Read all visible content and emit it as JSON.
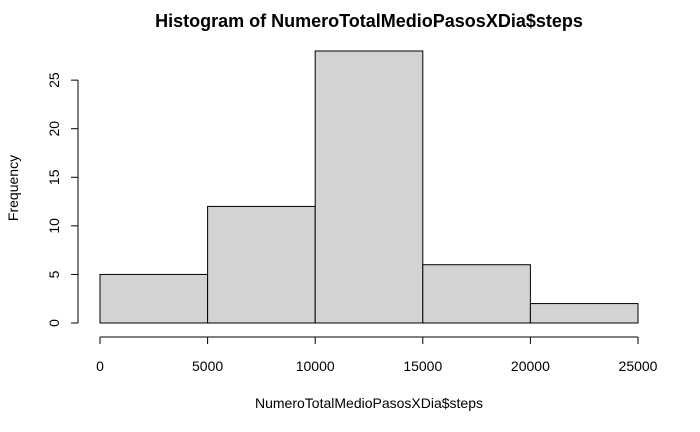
{
  "chart_data": {
    "type": "bar",
    "title": "Histogram of NumeroTotalMedioPasosXDia$steps",
    "xlabel": "NumeroTotalMedioPasosXDia$steps",
    "ylabel": "Frequency",
    "bins": [
      {
        "start": 0,
        "end": 5000,
        "count": 5
      },
      {
        "start": 5000,
        "end": 10000,
        "count": 12
      },
      {
        "start": 10000,
        "end": 15000,
        "count": 28
      },
      {
        "start": 15000,
        "end": 20000,
        "count": 6
      },
      {
        "start": 20000,
        "end": 25000,
        "count": 2
      }
    ],
    "xlim": [
      0,
      25000
    ],
    "ylim": [
      0,
      28
    ],
    "x_ticks": [
      0,
      5000,
      10000,
      15000,
      20000,
      25000
    ],
    "x_tick_labels": [
      "0",
      "5000",
      "10000",
      "15000",
      "20000",
      "25000"
    ],
    "y_ticks": [
      0,
      5,
      10,
      15,
      20,
      25
    ],
    "y_tick_labels": [
      "0",
      "5",
      "10",
      "15",
      "20",
      "25"
    ],
    "bar_color": "#D3D3D3",
    "edge_color": "#000000",
    "grid": false
  }
}
